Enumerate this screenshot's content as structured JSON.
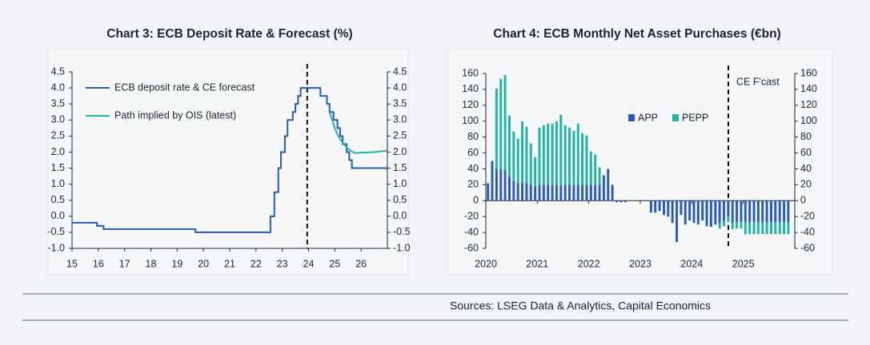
{
  "chart_data": [
    {
      "type": "line",
      "title": "Chart 3: ECB Deposit Rate & Forecast (%)",
      "xlim": [
        15,
        27
      ],
      "xticks": [
        15,
        16,
        17,
        18,
        19,
        20,
        21,
        22,
        23,
        24,
        25,
        26
      ],
      "ylim": [
        -1,
        4.5
      ],
      "yticks": [
        {
          "value": -1,
          "label": "-1.0"
        },
        -0.5,
        {
          "value": 0,
          "label": "0.0"
        },
        0.5,
        {
          "value": 1,
          "label": "1.0"
        },
        1.5,
        {
          "value": 2,
          "label": "2.0"
        },
        2.5,
        {
          "value": 3,
          "label": "3.0"
        },
        3.5,
        {
          "value": 4,
          "label": "4.0"
        },
        4.5
      ],
      "y2lim": [
        -1,
        4.5
      ],
      "y2ticks": [
        {
          "value": -1,
          "label": "-1.0"
        },
        -0.5,
        {
          "value": 0,
          "label": "0.0"
        },
        0.5,
        {
          "value": 1,
          "label": "1.0"
        },
        1.5,
        {
          "value": 2,
          "label": "2.0"
        },
        2.5,
        {
          "value": 3,
          "label": "3.0"
        },
        3.5,
        {
          "value": 4,
          "label": "4.0"
        },
        4.5
      ],
      "forecast_line_x": 23.95,
      "legend": "top-left",
      "series": [
        {
          "name": "ECB deposit rate & CE forecast",
          "color": "#2a5bb8",
          "x": [
            15,
            15.95,
            15.95,
            16.2,
            16.2,
            19.7,
            19.7,
            22.55,
            22.55,
            22.7,
            22.7,
            22.85,
            22.85,
            22.95,
            22.95,
            23.1,
            23.1,
            23.2,
            23.2,
            23.4,
            23.4,
            23.5,
            23.5,
            23.6,
            23.6,
            23.7,
            23.7,
            24.45,
            24.45,
            24.7,
            24.7,
            24.8,
            24.8,
            24.95,
            24.95,
            25.1,
            25.1,
            25.2,
            25.2,
            25.3,
            25.3,
            25.45,
            25.45,
            25.55,
            25.55,
            25.65,
            25.65,
            27
          ],
          "values": [
            -0.2,
            -0.2,
            -0.3,
            -0.3,
            -0.4,
            -0.4,
            -0.5,
            -0.5,
            0,
            0,
            0.75,
            0.75,
            1.5,
            1.5,
            2,
            2,
            2.5,
            2.5,
            3,
            3,
            3.25,
            3.25,
            3.5,
            3.5,
            3.75,
            3.75,
            4,
            4,
            3.75,
            3.75,
            3.5,
            3.5,
            3.25,
            3.25,
            3,
            3,
            2.75,
            2.75,
            2.5,
            2.5,
            2.25,
            2.25,
            2,
            2,
            1.75,
            1.75,
            1.5,
            1.5
          ]
        },
        {
          "name": "Path implied by OIS (latest)",
          "color": "#22b3a6",
          "x": [
            24.8,
            24.9,
            25.0,
            25.1,
            25.25,
            25.5,
            25.75,
            26,
            26.5,
            27
          ],
          "values": [
            3.25,
            3.0,
            2.75,
            2.55,
            2.35,
            2.1,
            1.97,
            1.98,
            2.0,
            2.05
          ]
        }
      ]
    },
    {
      "type": "bar",
      "title": "Chart 4: ECB Monthly Net Asset Purchases (€bn)",
      "xlim": [
        2020,
        2026
      ],
      "xticks": [
        2020,
        2021,
        2022,
        2023,
        2024,
        2025
      ],
      "ylim": [
        -60,
        160
      ],
      "yticks": [
        -60,
        -40,
        -20,
        0,
        20,
        40,
        60,
        80,
        100,
        120,
        140,
        160
      ],
      "y2lim": [
        -60,
        160
      ],
      "y2ticks": [
        -60,
        -40,
        -20,
        0,
        20,
        40,
        60,
        80,
        100,
        120,
        140,
        160
      ],
      "forecast_line_x": 2024.71,
      "annotation": "CE F'cast",
      "stacked": true,
      "legend": "top-center",
      "x": [
        2020,
        2020.083,
        2020.167,
        2020.25,
        2020.333,
        2020.417,
        2020.5,
        2020.583,
        2020.667,
        2020.75,
        2020.833,
        2020.917,
        2021,
        2021.083,
        2021.167,
        2021.25,
        2021.333,
        2021.417,
        2021.5,
        2021.583,
        2021.667,
        2021.75,
        2021.833,
        2021.917,
        2022,
        2022.083,
        2022.167,
        2022.25,
        2022.333,
        2022.417,
        2022.5,
        2022.583,
        2022.667,
        2022.75,
        2022.833,
        2022.917,
        2023,
        2023.083,
        2023.167,
        2023.25,
        2023.333,
        2023.417,
        2023.5,
        2023.583,
        2023.667,
        2023.75,
        2023.833,
        2023.917,
        2024,
        2024.083,
        2024.167,
        2024.25,
        2024.333,
        2024.417,
        2024.5,
        2024.583,
        2024.667,
        2024.75,
        2024.833,
        2024.917,
        2025,
        2025.083,
        2025.167,
        2025.25,
        2025.333,
        2025.417,
        2025.5,
        2025.583,
        2025.667,
        2025.75,
        2025.833
      ],
      "series": [
        {
          "name": "APP",
          "color": "#2a5bb8",
          "values": [
            22,
            50,
            40,
            40,
            38,
            30,
            25,
            22,
            22,
            22,
            20,
            18,
            20,
            20,
            20,
            20,
            20,
            20,
            20,
            20,
            20,
            20,
            20,
            20,
            20,
            20,
            20,
            32,
            40,
            20,
            -2,
            -2,
            -2,
            0,
            0,
            0,
            0,
            0,
            -15,
            -15,
            -13,
            -18,
            -20,
            -28,
            -52,
            -18,
            -30,
            -25,
            -28,
            -30,
            -25,
            -32,
            -33,
            -30,
            -28,
            -25,
            -20,
            -28,
            -27,
            -27,
            -27,
            -27,
            -27,
            -27,
            -27,
            -27,
            -27,
            -27,
            -27,
            -27,
            -27
          ]
        },
        {
          "name": "PEPP",
          "color": "#22b3a6",
          "values": [
            null,
            null,
            101,
            113,
            120,
            77,
            62,
            56,
            78,
            71,
            52,
            37,
            72,
            75,
            77,
            77,
            80,
            88,
            75,
            72,
            68,
            77,
            65,
            62,
            42,
            38,
            22,
            null,
            null,
            null,
            null,
            null,
            null,
            null,
            null,
            null,
            null,
            null,
            null,
            null,
            null,
            null,
            null,
            null,
            null,
            null,
            null,
            null,
            null,
            null,
            null,
            null,
            null,
            null,
            -7,
            -7,
            -7,
            -8,
            -8,
            -8,
            -15,
            -15,
            -15,
            -15,
            -15,
            -15,
            -15,
            -15,
            -15,
            -15,
            -15
          ]
        }
      ]
    }
  ],
  "source": "Sources: LSEG Data & Analytics, Capital Economics"
}
